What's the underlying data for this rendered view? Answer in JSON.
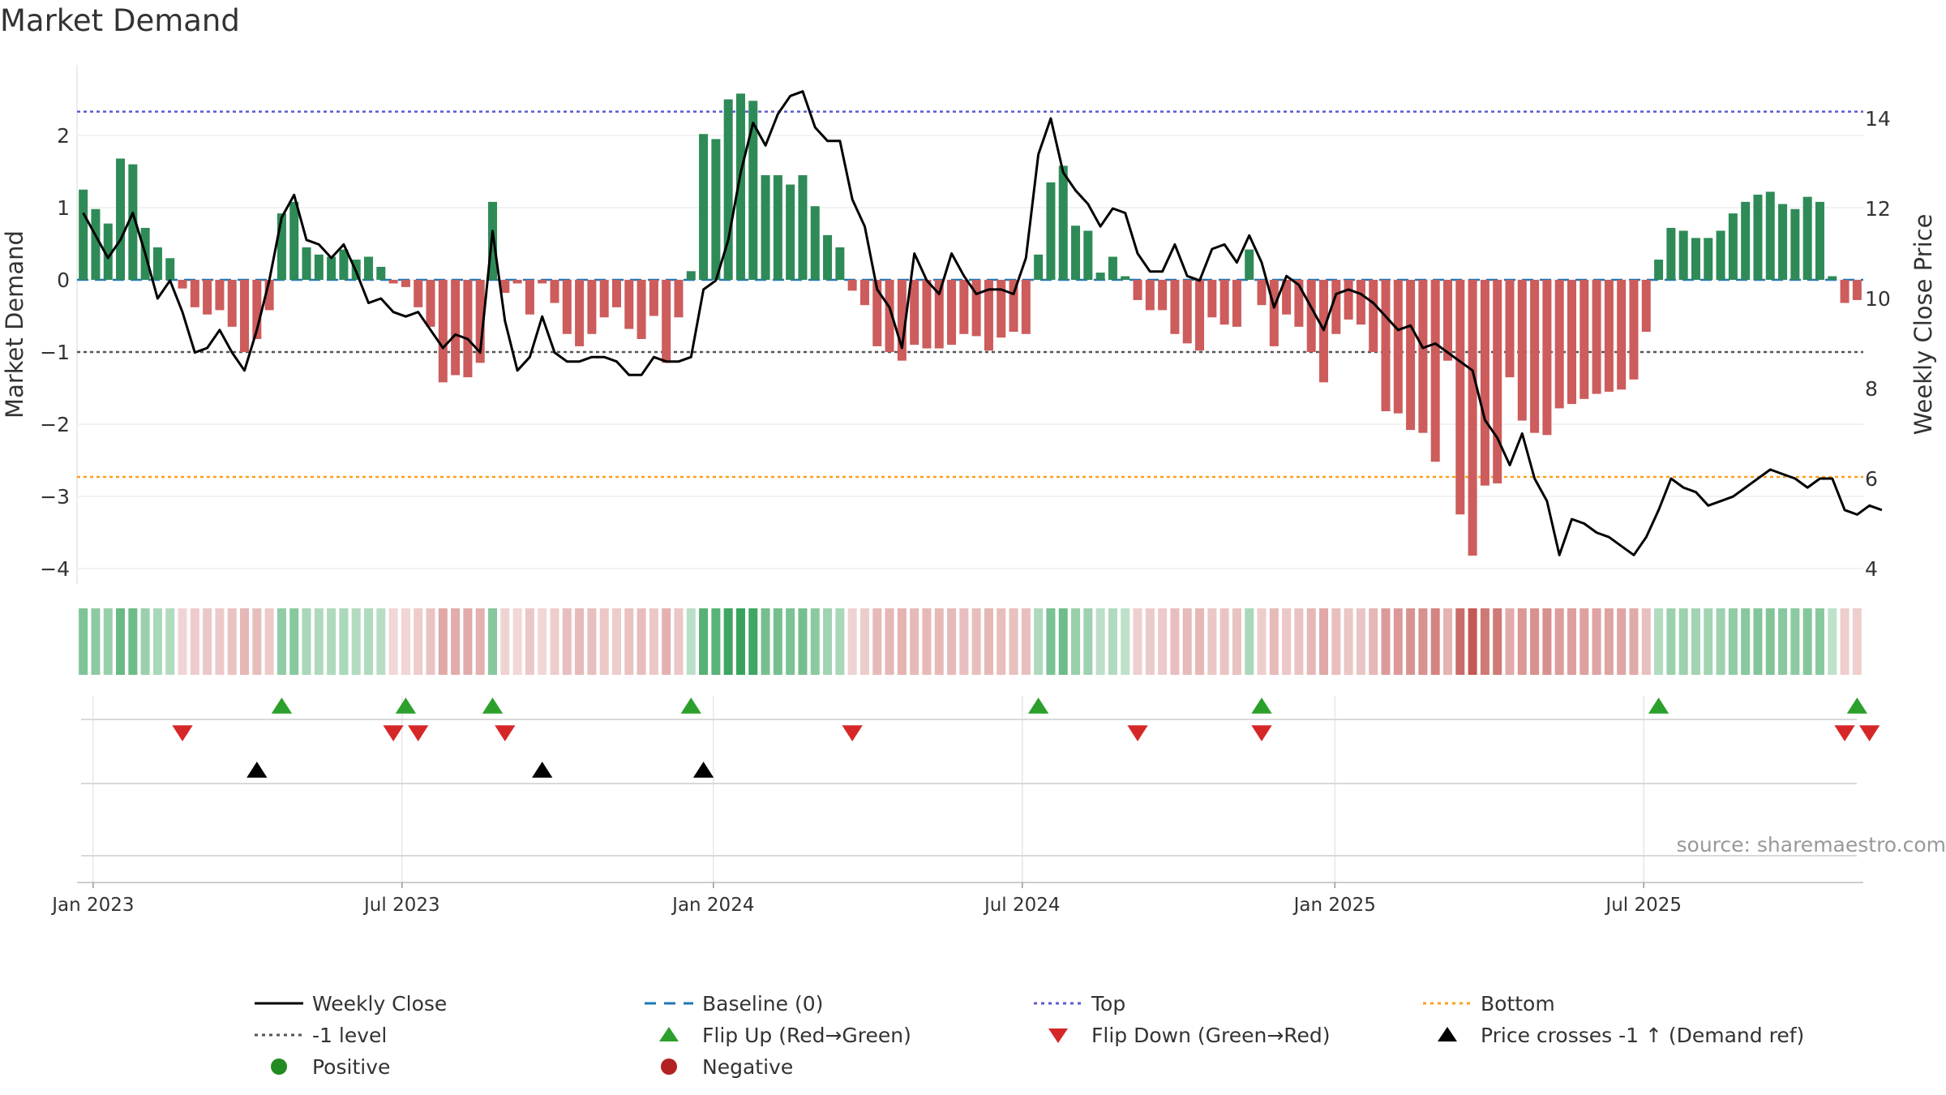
{
  "title": "Market Demand",
  "source": "source: sharemaestro.com",
  "axes": {
    "left_label": "Market Demand",
    "right_label": "Weekly Close Price",
    "left_ticks": [
      "2",
      "1",
      "0",
      "−1",
      "−2",
      "−3",
      "−4"
    ],
    "left_tick_values": [
      2,
      1,
      0,
      -1,
      -2,
      -3,
      -4
    ],
    "right_ticks": [
      "14",
      "12",
      "10",
      "8",
      "6",
      "4"
    ],
    "right_tick_values": [
      14,
      12,
      10,
      8,
      6,
      4
    ],
    "x_ticks": [
      "Jan 2023",
      "Jul 2023",
      "Jan 2024",
      "Jul 2024",
      "Jan 2025",
      "Jul 2025"
    ],
    "x_tick_weeks": [
      1.3,
      26.2,
      51.3,
      76.2,
      101.4,
      126.3
    ]
  },
  "colors": {
    "positive": "#2e8b57",
    "negative": "#cd5c5c",
    "price": "#000000",
    "baseline": "#1f77b4",
    "top": "#5b5bd6",
    "bottom": "#ff9f1c",
    "minus1": "#555555",
    "flip_up": "#2ca02c",
    "flip_down": "#d62728",
    "cross": "#000000",
    "legend_positive": "#228b22",
    "legend_negative": "#b22222"
  },
  "legend": [
    {
      "label": "Weekly Close",
      "kind": "line",
      "color": "#000000"
    },
    {
      "label": "Baseline (0)",
      "kind": "dash",
      "color": "#1f77b4"
    },
    {
      "label": "Top",
      "kind": "dot",
      "color": "#5b5bd6"
    },
    {
      "label": "Bottom",
      "kind": "dot",
      "color": "#ff9f1c"
    },
    {
      "label": "-1 level",
      "kind": "dot",
      "color": "#555555"
    },
    {
      "label": "Flip Up (Red→Green)",
      "kind": "tri-up",
      "color": "#2ca02c"
    },
    {
      "label": "Flip Down (Green→Red)",
      "kind": "tri-down",
      "color": "#d62728"
    },
    {
      "label": "Price crosses -1 ↑ (Demand ref)",
      "kind": "tri-up",
      "color": "#000000"
    },
    {
      "label": "Positive",
      "kind": "circle",
      "color": "#228b22"
    },
    {
      "label": "Negative",
      "kind": "circle",
      "color": "#b22222"
    }
  ],
  "chart_data": {
    "type": "bar",
    "x_unit": "week index (0 = first week of Jan 2023)",
    "ylim": [
      -4.3,
      2.8
    ],
    "y2lim": [
      3.7,
      15.0
    ],
    "reference_lines": {
      "baseline": 0,
      "top": 2.33,
      "minus1": -1,
      "bottom": -2.73
    },
    "series": [
      {
        "name": "Market Demand",
        "kind": "bar",
        "values": [
          1.25,
          0.98,
          0.78,
          1.68,
          1.6,
          0.72,
          0.45,
          0.3,
          -0.12,
          -0.38,
          -0.48,
          -0.42,
          -0.65,
          -1.0,
          -0.82,
          -0.42,
          0.92,
          1.08,
          0.45,
          0.35,
          0.32,
          0.42,
          0.28,
          0.32,
          0.18,
          -0.05,
          -0.1,
          -0.38,
          -0.65,
          -1.42,
          -1.32,
          -1.35,
          -1.15,
          1.08,
          -0.18,
          -0.05,
          -0.48,
          -0.05,
          -0.32,
          -0.75,
          -0.92,
          -0.75,
          -0.52,
          -0.38,
          -0.68,
          -0.82,
          -0.5,
          -1.15,
          -0.52,
          0.12,
          2.02,
          1.95,
          2.5,
          2.58,
          2.48,
          1.45,
          1.45,
          1.32,
          1.45,
          1.02,
          0.62,
          0.45,
          -0.15,
          -0.35,
          -0.92,
          -1.0,
          -1.12,
          -0.9,
          -0.95,
          -0.95,
          -0.9,
          -0.75,
          -0.78,
          -0.98,
          -0.8,
          -0.72,
          -0.75,
          0.35,
          1.35,
          1.58,
          0.75,
          0.68,
          0.1,
          0.32,
          0.05,
          -0.28,
          -0.42,
          -0.42,
          -0.75,
          -0.88,
          -0.98,
          -0.52,
          -0.62,
          -0.65,
          0.42,
          -0.35,
          -0.92,
          -0.48,
          -0.65,
          -1.0,
          -1.42,
          -0.75,
          -0.55,
          -0.62,
          -1.0,
          -1.82,
          -1.85,
          -2.08,
          -2.12,
          -2.52,
          -1.12,
          -3.25,
          -3.82,
          -2.85,
          -2.82,
          -1.35,
          -1.95,
          -2.12,
          -2.15,
          -1.78,
          -1.72,
          -1.65,
          -1.58,
          -1.55,
          -1.52,
          -1.38,
          -0.72,
          0.28,
          0.72,
          0.68,
          0.58,
          0.58,
          0.68,
          0.92,
          1.08,
          1.18,
          1.22,
          1.05,
          0.98,
          1.15,
          1.08,
          0.05,
          -0.32,
          -0.28
        ]
      },
      {
        "name": "Weekly Close",
        "kind": "line",
        "values": [
          11.9,
          11.4,
          10.9,
          11.3,
          11.9,
          11.0,
          10.0,
          10.4,
          9.7,
          8.8,
          8.9,
          9.3,
          8.8,
          8.4,
          9.3,
          10.4,
          11.8,
          12.3,
          11.3,
          11.2,
          10.9,
          11.2,
          10.6,
          9.9,
          10.0,
          9.7,
          9.6,
          9.7,
          9.3,
          8.9,
          9.2,
          9.1,
          8.8,
          11.5,
          9.5,
          8.4,
          8.7,
          9.6,
          8.8,
          8.6,
          8.6,
          8.7,
          8.7,
          8.6,
          8.3,
          8.3,
          8.7,
          8.6,
          8.6,
          8.7,
          10.2,
          10.4,
          11.3,
          12.8,
          13.9,
          13.4,
          14.1,
          14.5,
          14.6,
          13.8,
          13.5,
          13.5,
          12.2,
          11.6,
          10.2,
          9.8,
          8.9,
          11.0,
          10.4,
          10.1,
          11.0,
          10.5,
          10.1,
          10.2,
          10.2,
          10.1,
          10.9,
          13.2,
          14.0,
          12.8,
          12.4,
          12.1,
          11.6,
          12.0,
          11.9,
          11.0,
          10.6,
          10.6,
          11.2,
          10.5,
          10.4,
          11.1,
          11.2,
          10.8,
          11.4,
          10.8,
          9.8,
          10.5,
          10.3,
          9.8,
          9.3,
          10.1,
          10.2,
          10.1,
          9.9,
          9.6,
          9.3,
          9.4,
          8.9,
          9.0,
          8.8,
          8.6,
          8.4,
          7.3,
          6.9,
          6.3,
          7.0,
          6.0,
          5.5,
          4.3,
          5.1,
          5.0,
          4.8,
          4.7,
          4.5,
          4.3,
          4.7,
          5.3,
          6.0,
          5.8,
          5.7,
          5.4,
          5.5,
          5.6,
          5.8,
          6.0,
          6.2,
          6.1,
          6.0,
          5.8,
          6.0,
          6.0,
          5.3,
          5.2,
          5.4,
          5.3
        ]
      }
    ],
    "flip_up_weeks": [
      16,
      26,
      33,
      49,
      77,
      95,
      127,
      143
    ],
    "flip_down_weeks": [
      8,
      25,
      27,
      34,
      62,
      85,
      95,
      142,
      144
    ],
    "price_cross_up_weeks": [
      14,
      37,
      50
    ],
    "week_origin_label": "Jan 2023"
  }
}
